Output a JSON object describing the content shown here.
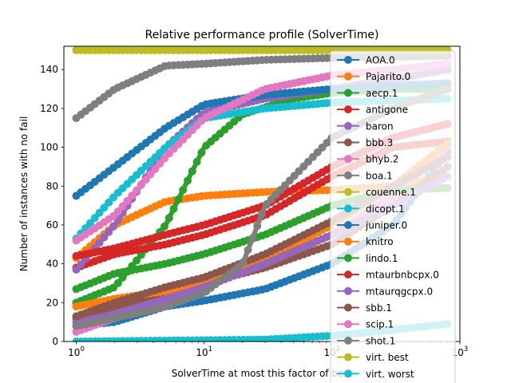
{
  "chart_data": {
    "type": "line",
    "title": "Relative performance profile (SolverTime)",
    "xlabel": "SolverTime at most this factor of best",
    "ylabel": "Number of instances with no fail",
    "xscale": "log",
    "xlim": [
      0.8,
      1000
    ],
    "ylim": [
      0,
      152
    ],
    "xticks": [
      {
        "value": 1,
        "base": "10",
        "exp": "0"
      },
      {
        "value": 10,
        "base": "10",
        "exp": "1"
      },
      {
        "value": 100,
        "base": "10",
        "exp": "2"
      },
      {
        "value": 1000,
        "base": "10",
        "exp": "3"
      }
    ],
    "yticks": [
      0,
      20,
      40,
      60,
      80,
      100,
      120,
      140
    ],
    "legend_position": "right",
    "series": [
      {
        "name": "AOA.0",
        "color": "#1f77b4",
        "points": [
          [
            1,
            8
          ],
          [
            2,
            10
          ],
          [
            5,
            18
          ],
          [
            10,
            21
          ],
          [
            30,
            27
          ],
          [
            100,
            40
          ],
          [
            300,
            60
          ],
          [
            800,
            98
          ]
        ]
      },
      {
        "name": "Pajarito.0",
        "color": "#ff7f0e",
        "points": [
          [
            1,
            43
          ],
          [
            2,
            60
          ],
          [
            5,
            72
          ],
          [
            10,
            75
          ],
          [
            30,
            77
          ],
          [
            100,
            78
          ],
          [
            300,
            80
          ],
          [
            800,
            85
          ]
        ]
      },
      {
        "name": "aecp.1",
        "color": "#2ca02c",
        "points": [
          [
            1,
            20
          ],
          [
            2,
            28
          ],
          [
            5,
            60
          ],
          [
            10,
            100
          ],
          [
            20,
            117
          ],
          [
            50,
            125
          ],
          [
            100,
            128
          ],
          [
            300,
            130
          ],
          [
            800,
            130
          ]
        ]
      },
      {
        "name": "antigone",
        "color": "#d62728",
        "points": [
          [
            1,
            38
          ],
          [
            2,
            45
          ],
          [
            5,
            50
          ],
          [
            10,
            55
          ],
          [
            30,
            65
          ],
          [
            100,
            85
          ],
          [
            300,
            100
          ],
          [
            800,
            103
          ]
        ]
      },
      {
        "name": "baron",
        "color": "#9467bd",
        "points": [
          [
            1,
            37
          ],
          [
            2,
            60
          ],
          [
            5,
            100
          ],
          [
            10,
            118
          ],
          [
            30,
            125
          ],
          [
            100,
            130
          ],
          [
            300,
            135
          ],
          [
            800,
            140
          ]
        ]
      },
      {
        "name": "bbb.3",
        "color": "#8c564b",
        "points": [
          [
            1,
            12
          ],
          [
            2,
            18
          ],
          [
            5,
            25
          ],
          [
            10,
            30
          ],
          [
            30,
            38
          ],
          [
            100,
            50
          ],
          [
            300,
            70
          ],
          [
            800,
            90
          ]
        ]
      },
      {
        "name": "bhyb.2",
        "color": "#e377c2",
        "points": [
          [
            1,
            5
          ],
          [
            2,
            12
          ],
          [
            5,
            20
          ],
          [
            10,
            28
          ],
          [
            30,
            40
          ],
          [
            100,
            55
          ],
          [
            300,
            75
          ],
          [
            800,
            100
          ]
        ]
      },
      {
        "name": "boa.1",
        "color": "#7f7f7f",
        "points": [
          [
            1,
            115
          ],
          [
            2,
            130
          ],
          [
            5,
            142
          ],
          [
            10,
            143
          ],
          [
            30,
            145
          ],
          [
            100,
            146
          ],
          [
            800,
            147
          ]
        ]
      },
      {
        "name": "couenne.1",
        "color": "#bcbd22",
        "points": [
          [
            1,
            150
          ],
          [
            800,
            150
          ]
        ]
      },
      {
        "name": "dicopt.1",
        "color": "#17becf",
        "points": [
          [
            1,
            53
          ],
          [
            2,
            75
          ],
          [
            5,
            100
          ],
          [
            10,
            115
          ],
          [
            30,
            120
          ],
          [
            100,
            123
          ],
          [
            800,
            125
          ]
        ]
      },
      {
        "name": "juniper.0",
        "color": "#1f77b4",
        "points": [
          [
            1,
            75
          ],
          [
            2,
            90
          ],
          [
            5,
            110
          ],
          [
            10,
            122
          ],
          [
            30,
            127
          ],
          [
            100,
            130
          ],
          [
            800,
            133
          ]
        ]
      },
      {
        "name": "knitro",
        "color": "#ff7f0e",
        "points": [
          [
            1,
            18
          ],
          [
            2,
            22
          ],
          [
            5,
            26
          ],
          [
            10,
            30
          ],
          [
            30,
            42
          ],
          [
            100,
            60
          ],
          [
            300,
            80
          ],
          [
            800,
            102
          ]
        ]
      },
      {
        "name": "lindo.1",
        "color": "#2ca02c",
        "points": [
          [
            1,
            27
          ],
          [
            2,
            35
          ],
          [
            5,
            40
          ],
          [
            10,
            45
          ],
          [
            30,
            55
          ],
          [
            100,
            70
          ],
          [
            300,
            78
          ],
          [
            800,
            79
          ]
        ]
      },
      {
        "name": "mtaurbnbcpx.0",
        "color": "#d62728",
        "points": [
          [
            1,
            44
          ],
          [
            2,
            48
          ],
          [
            5,
            55
          ],
          [
            10,
            60
          ],
          [
            30,
            70
          ],
          [
            100,
            90
          ],
          [
            300,
            105
          ],
          [
            800,
            112
          ]
        ]
      },
      {
        "name": "mtaurqgcpx.0",
        "color": "#9467bd",
        "points": [
          [
            1,
            10
          ],
          [
            2,
            14
          ],
          [
            5,
            22
          ],
          [
            10,
            28
          ],
          [
            30,
            40
          ],
          [
            100,
            55
          ],
          [
            300,
            70
          ],
          [
            800,
            85
          ]
        ]
      },
      {
        "name": "sbb.1",
        "color": "#8c564b",
        "points": [
          [
            1,
            13
          ],
          [
            2,
            20
          ],
          [
            5,
            28
          ],
          [
            10,
            33
          ],
          [
            30,
            45
          ],
          [
            100,
            62
          ],
          [
            300,
            80
          ],
          [
            800,
            95
          ]
        ]
      },
      {
        "name": "scip.1",
        "color": "#e377c2",
        "points": [
          [
            1,
            52
          ],
          [
            2,
            65
          ],
          [
            5,
            95
          ],
          [
            10,
            115
          ],
          [
            30,
            130
          ],
          [
            100,
            137
          ],
          [
            300,
            140
          ],
          [
            800,
            143
          ]
        ]
      },
      {
        "name": "shot.1",
        "color": "#7f7f7f",
        "points": [
          [
            1,
            8
          ],
          [
            2,
            12
          ],
          [
            5,
            18
          ],
          [
            10,
            25
          ],
          [
            20,
            40
          ],
          [
            30,
            70
          ],
          [
            100,
            105
          ],
          [
            300,
            120
          ],
          [
            800,
            130
          ]
        ]
      },
      {
        "name": "virt. best",
        "color": "#bcbd22",
        "points": [
          [
            1,
            150
          ],
          [
            800,
            150
          ]
        ]
      },
      {
        "name": "virt. worst",
        "color": "#17becf",
        "points": [
          [
            1,
            0
          ],
          [
            30,
            1
          ],
          [
            100,
            3
          ],
          [
            300,
            6
          ],
          [
            800,
            9
          ]
        ]
      }
    ]
  }
}
